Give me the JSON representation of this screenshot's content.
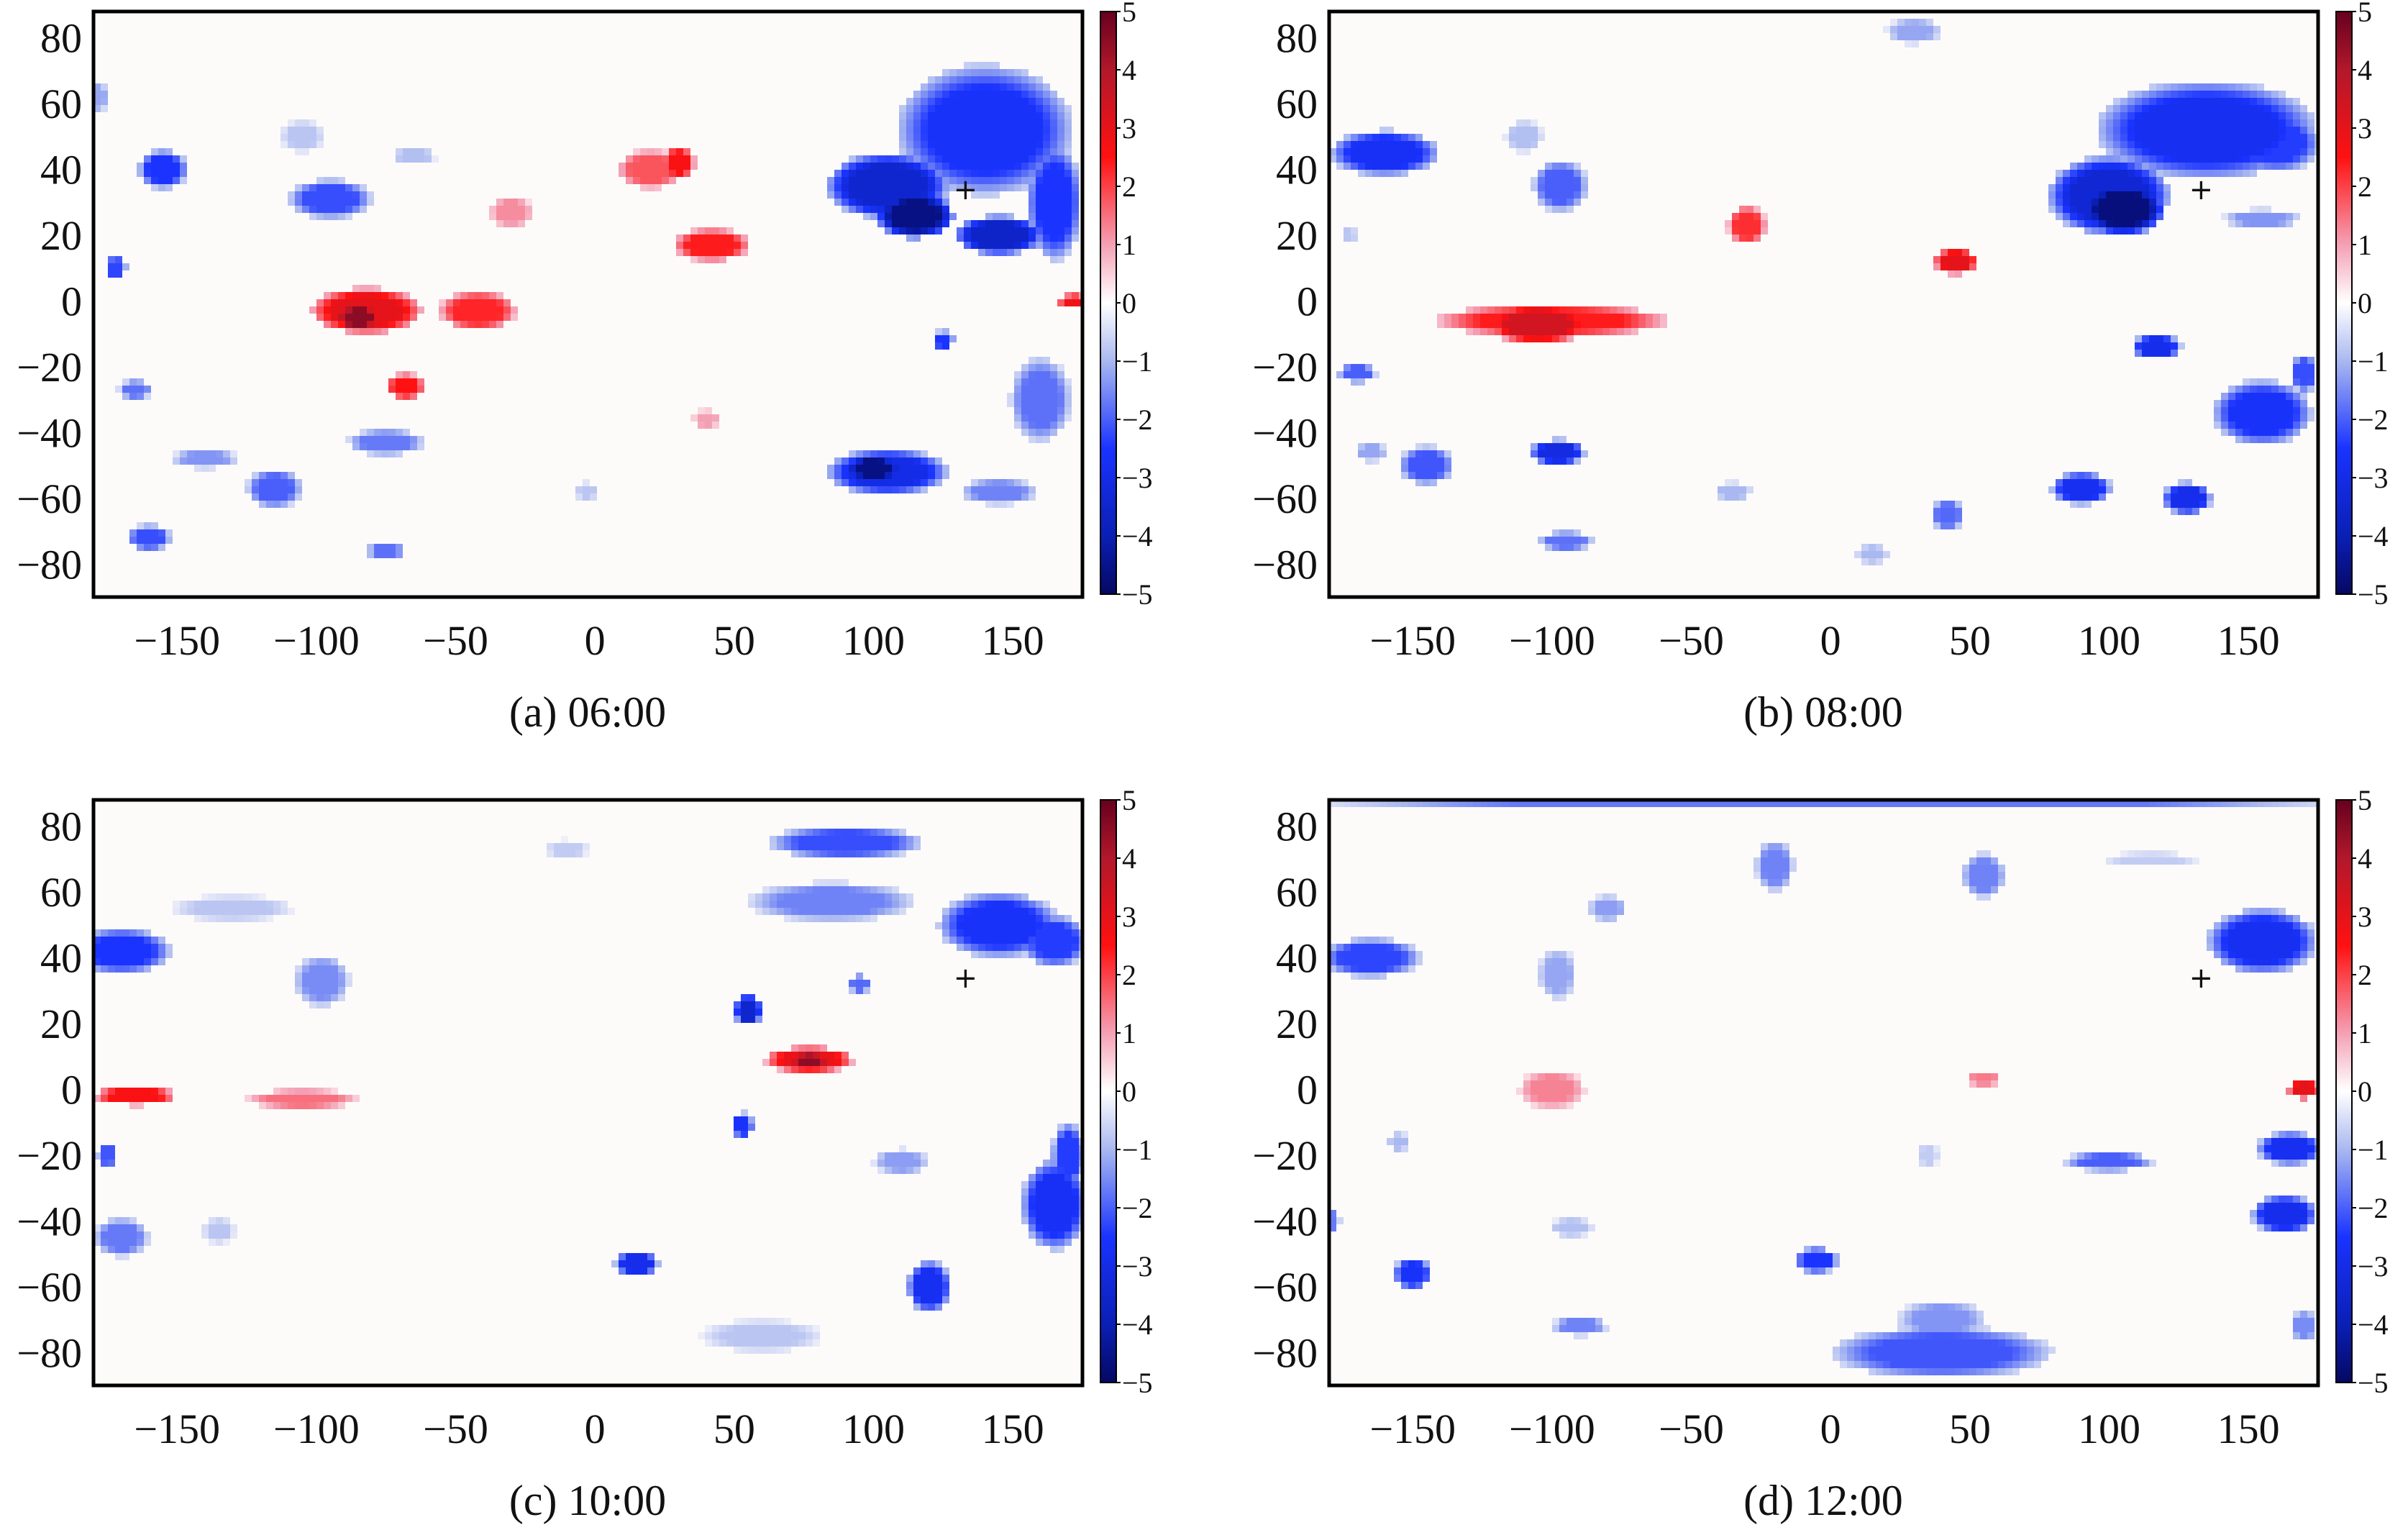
{
  "chart_data": [
    {
      "type": "heatmap",
      "caption": "(a) 06:00",
      "xlim": [
        -180,
        175
      ],
      "ylim": [
        -90,
        88
      ],
      "xticks": [
        "−150",
        "−100",
        "−50",
        "0",
        "50",
        "100",
        "150"
      ],
      "xtick_values": [
        -150,
        -100,
        -50,
        0,
        50,
        100,
        150
      ],
      "yticks": [
        "80",
        "60",
        "40",
        "20",
        "0",
        "−20",
        "−40",
        "−60",
        "−80"
      ],
      "ytick_values": [
        80,
        60,
        40,
        20,
        0,
        -20,
        -40,
        -60,
        -80
      ],
      "colorbar": {
        "min": -5,
        "max": 5,
        "ticks": [
          "5",
          "4",
          "3",
          "2",
          "1",
          "0",
          "−1",
          "−2",
          "−3",
          "−4",
          "−5"
        ]
      },
      "marker": {
        "symbol": "+",
        "x": 133,
        "y": 34
      },
      "blobs": [
        {
          "x": 140,
          "y": 52,
          "rx": 32,
          "ry": 20,
          "v": -2.6
        },
        {
          "x": 105,
          "y": 35,
          "rx": 22,
          "ry": 10,
          "v": -3.5
        },
        {
          "x": 115,
          "y": 26,
          "rx": 14,
          "ry": 7,
          "v": -4.6
        },
        {
          "x": 145,
          "y": 20,
          "rx": 16,
          "ry": 6,
          "v": -3.6
        },
        {
          "x": 165,
          "y": 30,
          "rx": 10,
          "ry": 18,
          "v": -2.5
        },
        {
          "x": -42,
          "y": -3,
          "rx": 14,
          "ry": 6,
          "v": 2.3
        },
        {
          "x": -82,
          "y": -3,
          "rx": 20,
          "ry": 7,
          "v": 3.0
        },
        {
          "x": -85,
          "y": -5,
          "rx": 8,
          "ry": 4,
          "v": 4.5
        },
        {
          "x": -68,
          "y": -26,
          "rx": 7,
          "ry": 4,
          "v": 2.5
        },
        {
          "x": 42,
          "y": 17,
          "rx": 14,
          "ry": 5,
          "v": 2.4
        },
        {
          "x": 20,
          "y": 40,
          "rx": 12,
          "ry": 6,
          "v": 1.8
        },
        {
          "x": 30,
          "y": 42,
          "rx": 6,
          "ry": 5,
          "v": 2.6
        },
        {
          "x": -30,
          "y": 27,
          "rx": 8,
          "ry": 5,
          "v": 1.2
        },
        {
          "x": 40,
          "y": -36,
          "rx": 5,
          "ry": 3,
          "v": 1.0
        },
        {
          "x": 172,
          "y": 0,
          "rx": 6,
          "ry": 2,
          "v": 2.8
        },
        {
          "x": 105,
          "y": -52,
          "rx": 22,
          "ry": 7,
          "v": -3.0
        },
        {
          "x": 100,
          "y": -51,
          "rx": 10,
          "ry": 4,
          "v": -4.6
        },
        {
          "x": -155,
          "y": 40,
          "rx": 9,
          "ry": 6,
          "v": -2.5
        },
        {
          "x": -95,
          "y": 31,
          "rx": 15,
          "ry": 6,
          "v": -2.2
        },
        {
          "x": -105,
          "y": 50,
          "rx": 8,
          "ry": 5,
          "v": -0.8
        },
        {
          "x": -65,
          "y": 44,
          "rx": 8,
          "ry": 3,
          "v": -0.9
        },
        {
          "x": -165,
          "y": -27,
          "rx": 6,
          "ry": 3,
          "v": -1.8
        },
        {
          "x": -172,
          "y": 10,
          "rx": 4,
          "ry": 4,
          "v": -2.3
        },
        {
          "x": -160,
          "y": -72,
          "rx": 8,
          "ry": 4,
          "v": -2.2
        },
        {
          "x": -75,
          "y": -43,
          "rx": 14,
          "ry": 4,
          "v": -1.7
        },
        {
          "x": -75,
          "y": -76,
          "rx": 7,
          "ry": 3,
          "v": -1.8
        },
        {
          "x": -115,
          "y": -57,
          "rx": 10,
          "ry": 6,
          "v": -2.0
        },
        {
          "x": -140,
          "y": -48,
          "rx": 12,
          "ry": 3,
          "v": -1.4
        },
        {
          "x": 160,
          "y": -30,
          "rx": 11,
          "ry": 13,
          "v": -1.8
        },
        {
          "x": 145,
          "y": -58,
          "rx": 14,
          "ry": 4,
          "v": -1.6
        },
        {
          "x": 125,
          "y": -12,
          "rx": 4,
          "ry": 3,
          "v": -2.5
        },
        {
          "x": -3,
          "y": -58,
          "rx": 4,
          "ry": 3,
          "v": -0.8
        },
        {
          "x": -178,
          "y": 62,
          "rx": 3,
          "ry": 5,
          "v": -1.2
        }
      ]
    },
    {
      "type": "heatmap",
      "caption": "(b) 08:00",
      "xlim": [
        -180,
        175
      ],
      "ylim": [
        -90,
        88
      ],
      "xticks": [
        "−150",
        "−100",
        "−50",
        "0",
        "50",
        "100",
        "150"
      ],
      "xtick_values": [
        -150,
        -100,
        -50,
        0,
        50,
        100,
        150
      ],
      "yticks": [
        "80",
        "60",
        "40",
        "20",
        "0",
        "−20",
        "−40",
        "−60",
        "−80"
      ],
      "ytick_values": [
        80,
        60,
        40,
        20,
        0,
        -20,
        -40,
        -60,
        -80
      ],
      "colorbar": {
        "min": -5,
        "max": 5,
        "ticks": [
          "5",
          "4",
          "3",
          "2",
          "1",
          "0",
          "−1",
          "−2",
          "−3",
          "−4",
          "−5"
        ]
      },
      "marker": {
        "symbol": "+",
        "x": 133,
        "y": 34
      },
      "blobs": [
        {
          "x": 135,
          "y": 52,
          "rx": 40,
          "ry": 15,
          "v": -2.8
        },
        {
          "x": 100,
          "y": 32,
          "rx": 22,
          "ry": 12,
          "v": -3.4
        },
        {
          "x": 105,
          "y": 28,
          "rx": 15,
          "ry": 8,
          "v": -4.7
        },
        {
          "x": 160,
          "y": 48,
          "rx": 16,
          "ry": 9,
          "v": -2.4
        },
        {
          "x": 155,
          "y": 25,
          "rx": 14,
          "ry": 3,
          "v": -1.4
        },
        {
          "x": 45,
          "y": 12,
          "rx": 8,
          "ry": 4,
          "v": 3.0
        },
        {
          "x": -100,
          "y": -6,
          "rx": 42,
          "ry": 5,
          "v": 2.4
        },
        {
          "x": -105,
          "y": -7,
          "rx": 18,
          "ry": 6,
          "v": 3.4
        },
        {
          "x": -30,
          "y": 23,
          "rx": 7,
          "ry": 6,
          "v": 2.2
        },
        {
          "x": 30,
          "y": 82,
          "rx": 10,
          "ry": 4,
          "v": -1.2
        },
        {
          "x": -160,
          "y": 45,
          "rx": 20,
          "ry": 7,
          "v": -2.7
        },
        {
          "x": -97,
          "y": 35,
          "rx": 10,
          "ry": 8,
          "v": -2.0
        },
        {
          "x": -110,
          "y": 50,
          "rx": 7,
          "ry": 5,
          "v": -0.9
        },
        {
          "x": 117,
          "y": -14,
          "rx": 9,
          "ry": 4,
          "v": -2.9
        },
        {
          "x": 155,
          "y": -34,
          "rx": 18,
          "ry": 10,
          "v": -2.6
        },
        {
          "x": 170,
          "y": -22,
          "rx": 5,
          "ry": 6,
          "v": -2.2
        },
        {
          "x": -98,
          "y": -46,
          "rx": 10,
          "ry": 4,
          "v": -3.1
        },
        {
          "x": -145,
          "y": -50,
          "rx": 10,
          "ry": 6,
          "v": -2.1
        },
        {
          "x": -165,
          "y": -46,
          "rx": 6,
          "ry": 3,
          "v": -1.2
        },
        {
          "x": -170,
          "y": -22,
          "rx": 7,
          "ry": 3,
          "v": -2.0
        },
        {
          "x": -95,
          "y": -73,
          "rx": 10,
          "ry": 3,
          "v": -1.8
        },
        {
          "x": 90,
          "y": -57,
          "rx": 11,
          "ry": 5,
          "v": -2.8
        },
        {
          "x": 128,
          "y": -60,
          "rx": 9,
          "ry": 5,
          "v": -2.9
        },
        {
          "x": 42,
          "y": -65,
          "rx": 6,
          "ry": 5,
          "v": -1.9
        },
        {
          "x": -35,
          "y": -58,
          "rx": 7,
          "ry": 3,
          "v": -1.0
        },
        {
          "x": 15,
          "y": -77,
          "rx": 6,
          "ry": 3,
          "v": -1.0
        },
        {
          "x": -173,
          "y": 20,
          "rx": 3,
          "ry": 3,
          "v": -0.8
        }
      ]
    },
    {
      "type": "heatmap",
      "caption": "(c) 10:00",
      "xlim": [
        -180,
        175
      ],
      "ylim": [
        -90,
        88
      ],
      "xticks": [
        "−150",
        "−100",
        "−50",
        "0",
        "50",
        "100",
        "150"
      ],
      "xtick_values": [
        -150,
        -100,
        -50,
        0,
        50,
        100,
        150
      ],
      "yticks": [
        "80",
        "60",
        "40",
        "20",
        "0",
        "−20",
        "−40",
        "−60",
        "−80"
      ],
      "ytick_values": [
        80,
        60,
        40,
        20,
        0,
        -20,
        -40,
        -60,
        -80
      ],
      "colorbar": {
        "min": -5,
        "max": 5,
        "ticks": [
          "5",
          "4",
          "3",
          "2",
          "1",
          "0",
          "−1",
          "−2",
          "−3",
          "−4",
          "−5"
        ]
      },
      "marker": {
        "symbol": "+",
        "x": 133,
        "y": 34
      },
      "blobs": [
        {
          "x": 90,
          "y": 75,
          "rx": 28,
          "ry": 5,
          "v": -2.2
        },
        {
          "x": 85,
          "y": 57,
          "rx": 30,
          "ry": 6,
          "v": -1.6
        },
        {
          "x": 145,
          "y": 50,
          "rx": 22,
          "ry": 10,
          "v": -2.6
        },
        {
          "x": 165,
          "y": 45,
          "rx": 12,
          "ry": 8,
          "v": -2.4
        },
        {
          "x": 77,
          "y": 9,
          "rx": 16,
          "ry": 4,
          "v": 2.9
        },
        {
          "x": 77,
          "y": 9,
          "rx": 8,
          "ry": 2,
          "v": 4.5
        },
        {
          "x": -165,
          "y": -2,
          "rx": 15,
          "ry": 3,
          "v": 2.6
        },
        {
          "x": -105,
          "y": -3,
          "rx": 20,
          "ry": 3,
          "v": 1.5
        },
        {
          "x": 55,
          "y": 24,
          "rx": 5,
          "ry": 5,
          "v": -3.5
        },
        {
          "x": 53,
          "y": -11,
          "rx": 4,
          "ry": 4,
          "v": -2.6
        },
        {
          "x": 95,
          "y": 32,
          "rx": 4,
          "ry": 3,
          "v": -1.9
        },
        {
          "x": -170,
          "y": 42,
          "rx": 18,
          "ry": 7,
          "v": -2.5
        },
        {
          "x": -98,
          "y": 33,
          "rx": 10,
          "ry": 8,
          "v": -1.5
        },
        {
          "x": -130,
          "y": 55,
          "rx": 22,
          "ry": 4,
          "v": -0.8
        },
        {
          "x": 165,
          "y": -35,
          "rx": 12,
          "ry": 14,
          "v": -2.7
        },
        {
          "x": 170,
          "y": -20,
          "rx": 6,
          "ry": 10,
          "v": -2.4
        },
        {
          "x": 120,
          "y": -60,
          "rx": 8,
          "ry": 8,
          "v": -2.8
        },
        {
          "x": 15,
          "y": -53,
          "rx": 8,
          "ry": 4,
          "v": -2.9
        },
        {
          "x": -170,
          "y": -45,
          "rx": 10,
          "ry": 6,
          "v": -1.7
        },
        {
          "x": -175,
          "y": -20,
          "rx": 4,
          "ry": 4,
          "v": -2.1
        },
        {
          "x": 110,
          "y": -22,
          "rx": 10,
          "ry": 4,
          "v": -1.3
        },
        {
          "x": 60,
          "y": -75,
          "rx": 22,
          "ry": 5,
          "v": -0.8
        },
        {
          "x": -135,
          "y": -43,
          "rx": 6,
          "ry": 4,
          "v": -0.8
        },
        {
          "x": -10,
          "y": 73,
          "rx": 8,
          "ry": 3,
          "v": -0.7
        }
      ]
    },
    {
      "type": "heatmap",
      "caption": "(d) 12:00",
      "xlim": [
        -180,
        175
      ],
      "ylim": [
        -90,
        88
      ],
      "xticks": [
        "−150",
        "−100",
        "−50",
        "0",
        "50",
        "100",
        "150"
      ],
      "xtick_values": [
        -150,
        -100,
        -50,
        0,
        50,
        100,
        150
      ],
      "yticks": [
        "80",
        "60",
        "40",
        "20",
        "0",
        "−20",
        "−40",
        "−60",
        "−80"
      ],
      "ytick_values": [
        80,
        60,
        40,
        20,
        0,
        -20,
        -40,
        -60,
        -80
      ],
      "colorbar": {
        "min": -5,
        "max": 5,
        "ticks": [
          "5",
          "4",
          "3",
          "2",
          "1",
          "0",
          "−1",
          "−2",
          "−3",
          "−4",
          "−5"
        ]
      },
      "marker": {
        "symbol": "+",
        "x": 133,
        "y": 34
      },
      "blobs": [
        {
          "x": 0,
          "y": 87,
          "rx": 180,
          "ry": 2,
          "v": -1.7
        },
        {
          "x": 155,
          "y": 45,
          "rx": 20,
          "ry": 10,
          "v": -2.8
        },
        {
          "x": -165,
          "y": 40,
          "rx": 18,
          "ry": 6,
          "v": -2.3
        },
        {
          "x": -98,
          "y": 35,
          "rx": 7,
          "ry": 8,
          "v": -1.2
        },
        {
          "x": -80,
          "y": 55,
          "rx": 7,
          "ry": 4,
          "v": -1.3
        },
        {
          "x": -20,
          "y": 68,
          "rx": 7,
          "ry": 8,
          "v": -1.6
        },
        {
          "x": 55,
          "y": 65,
          "rx": 8,
          "ry": 7,
          "v": -1.6
        },
        {
          "x": 115,
          "y": 70,
          "rx": 18,
          "ry": 2,
          "v": -0.7
        },
        {
          "x": -100,
          "y": 0,
          "rx": 12,
          "ry": 6,
          "v": 1.3
        },
        {
          "x": 55,
          "y": 3,
          "rx": 7,
          "ry": 2,
          "v": 1.4
        },
        {
          "x": 170,
          "y": 0,
          "rx": 6,
          "ry": 3,
          "v": 3.0
        },
        {
          "x": 40,
          "y": -80,
          "rx": 40,
          "ry": 8,
          "v": -2.1
        },
        {
          "x": 40,
          "y": -70,
          "rx": 16,
          "ry": 6,
          "v": -1.4
        },
        {
          "x": 100,
          "y": -22,
          "rx": 16,
          "ry": 3,
          "v": -2.0
        },
        {
          "x": 165,
          "y": -18,
          "rx": 12,
          "ry": 5,
          "v": -2.8
        },
        {
          "x": 163,
          "y": -38,
          "rx": 12,
          "ry": 6,
          "v": -2.9
        },
        {
          "x": -150,
          "y": -56,
          "rx": 7,
          "ry": 5,
          "v": -2.6
        },
        {
          "x": -90,
          "y": -72,
          "rx": 10,
          "ry": 3,
          "v": -1.6
        },
        {
          "x": -180,
          "y": -40,
          "rx": 4,
          "ry": 4,
          "v": -1.7
        },
        {
          "x": -5,
          "y": -52,
          "rx": 8,
          "ry": 4,
          "v": -2.5
        },
        {
          "x": 170,
          "y": -72,
          "rx": 5,
          "ry": 5,
          "v": -1.5
        },
        {
          "x": -93,
          "y": -42,
          "rx": 8,
          "ry": 3,
          "v": -0.9
        },
        {
          "x": -155,
          "y": -16,
          "rx": 4,
          "ry": 3,
          "v": -1.0
        },
        {
          "x": 35,
          "y": -20,
          "rx": 4,
          "ry": 4,
          "v": -0.7
        }
      ]
    }
  ]
}
